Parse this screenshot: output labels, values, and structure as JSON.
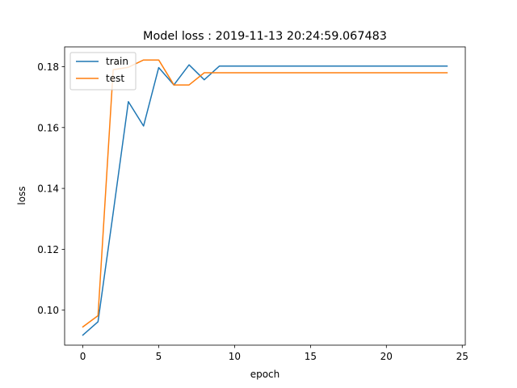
{
  "chart_data": {
    "type": "line",
    "title": "Model loss : 2019-11-13 20:24:59.067483",
    "xlabel": "epoch",
    "ylabel": "loss",
    "xlim": [
      -1.2,
      25.2
    ],
    "ylim": [
      0.0885,
      0.1865
    ],
    "xticks": [
      0,
      5,
      10,
      15,
      20,
      25
    ],
    "yticks": [
      0.1,
      0.12,
      0.14,
      0.16,
      0.18
    ],
    "xtick_labels": [
      "0",
      "5",
      "10",
      "15",
      "20",
      "25"
    ],
    "ytick_labels": [
      "0.10",
      "0.12",
      "0.14",
      "0.16",
      "0.18"
    ],
    "grid": false,
    "legend_position": "upper-left",
    "x": [
      0,
      1,
      2,
      3,
      4,
      5,
      6,
      7,
      8,
      9,
      10,
      11,
      12,
      13,
      14,
      15,
      16,
      17,
      18,
      19,
      20,
      21,
      22,
      23,
      24
    ],
    "series": [
      {
        "name": "train",
        "color": "#1f77b4",
        "values": [
          0.0918,
          0.0962,
          0.132,
          0.1685,
          0.1605,
          0.1797,
          0.174,
          0.1806,
          0.1757,
          0.1802,
          0.1802,
          0.1802,
          0.1802,
          0.1802,
          0.1802,
          0.1802,
          0.1802,
          0.1802,
          0.1802,
          0.1802,
          0.1802,
          0.1802,
          0.1802,
          0.1802,
          0.1802
        ]
      },
      {
        "name": "test",
        "color": "#ff7f0e",
        "values": [
          0.0945,
          0.0982,
          0.179,
          0.1798,
          0.1822,
          0.1822,
          0.174,
          0.174,
          0.178,
          0.178,
          0.178,
          0.178,
          0.178,
          0.178,
          0.178,
          0.178,
          0.178,
          0.178,
          0.178,
          0.178,
          0.178,
          0.178,
          0.178,
          0.178,
          0.178
        ]
      }
    ]
  }
}
